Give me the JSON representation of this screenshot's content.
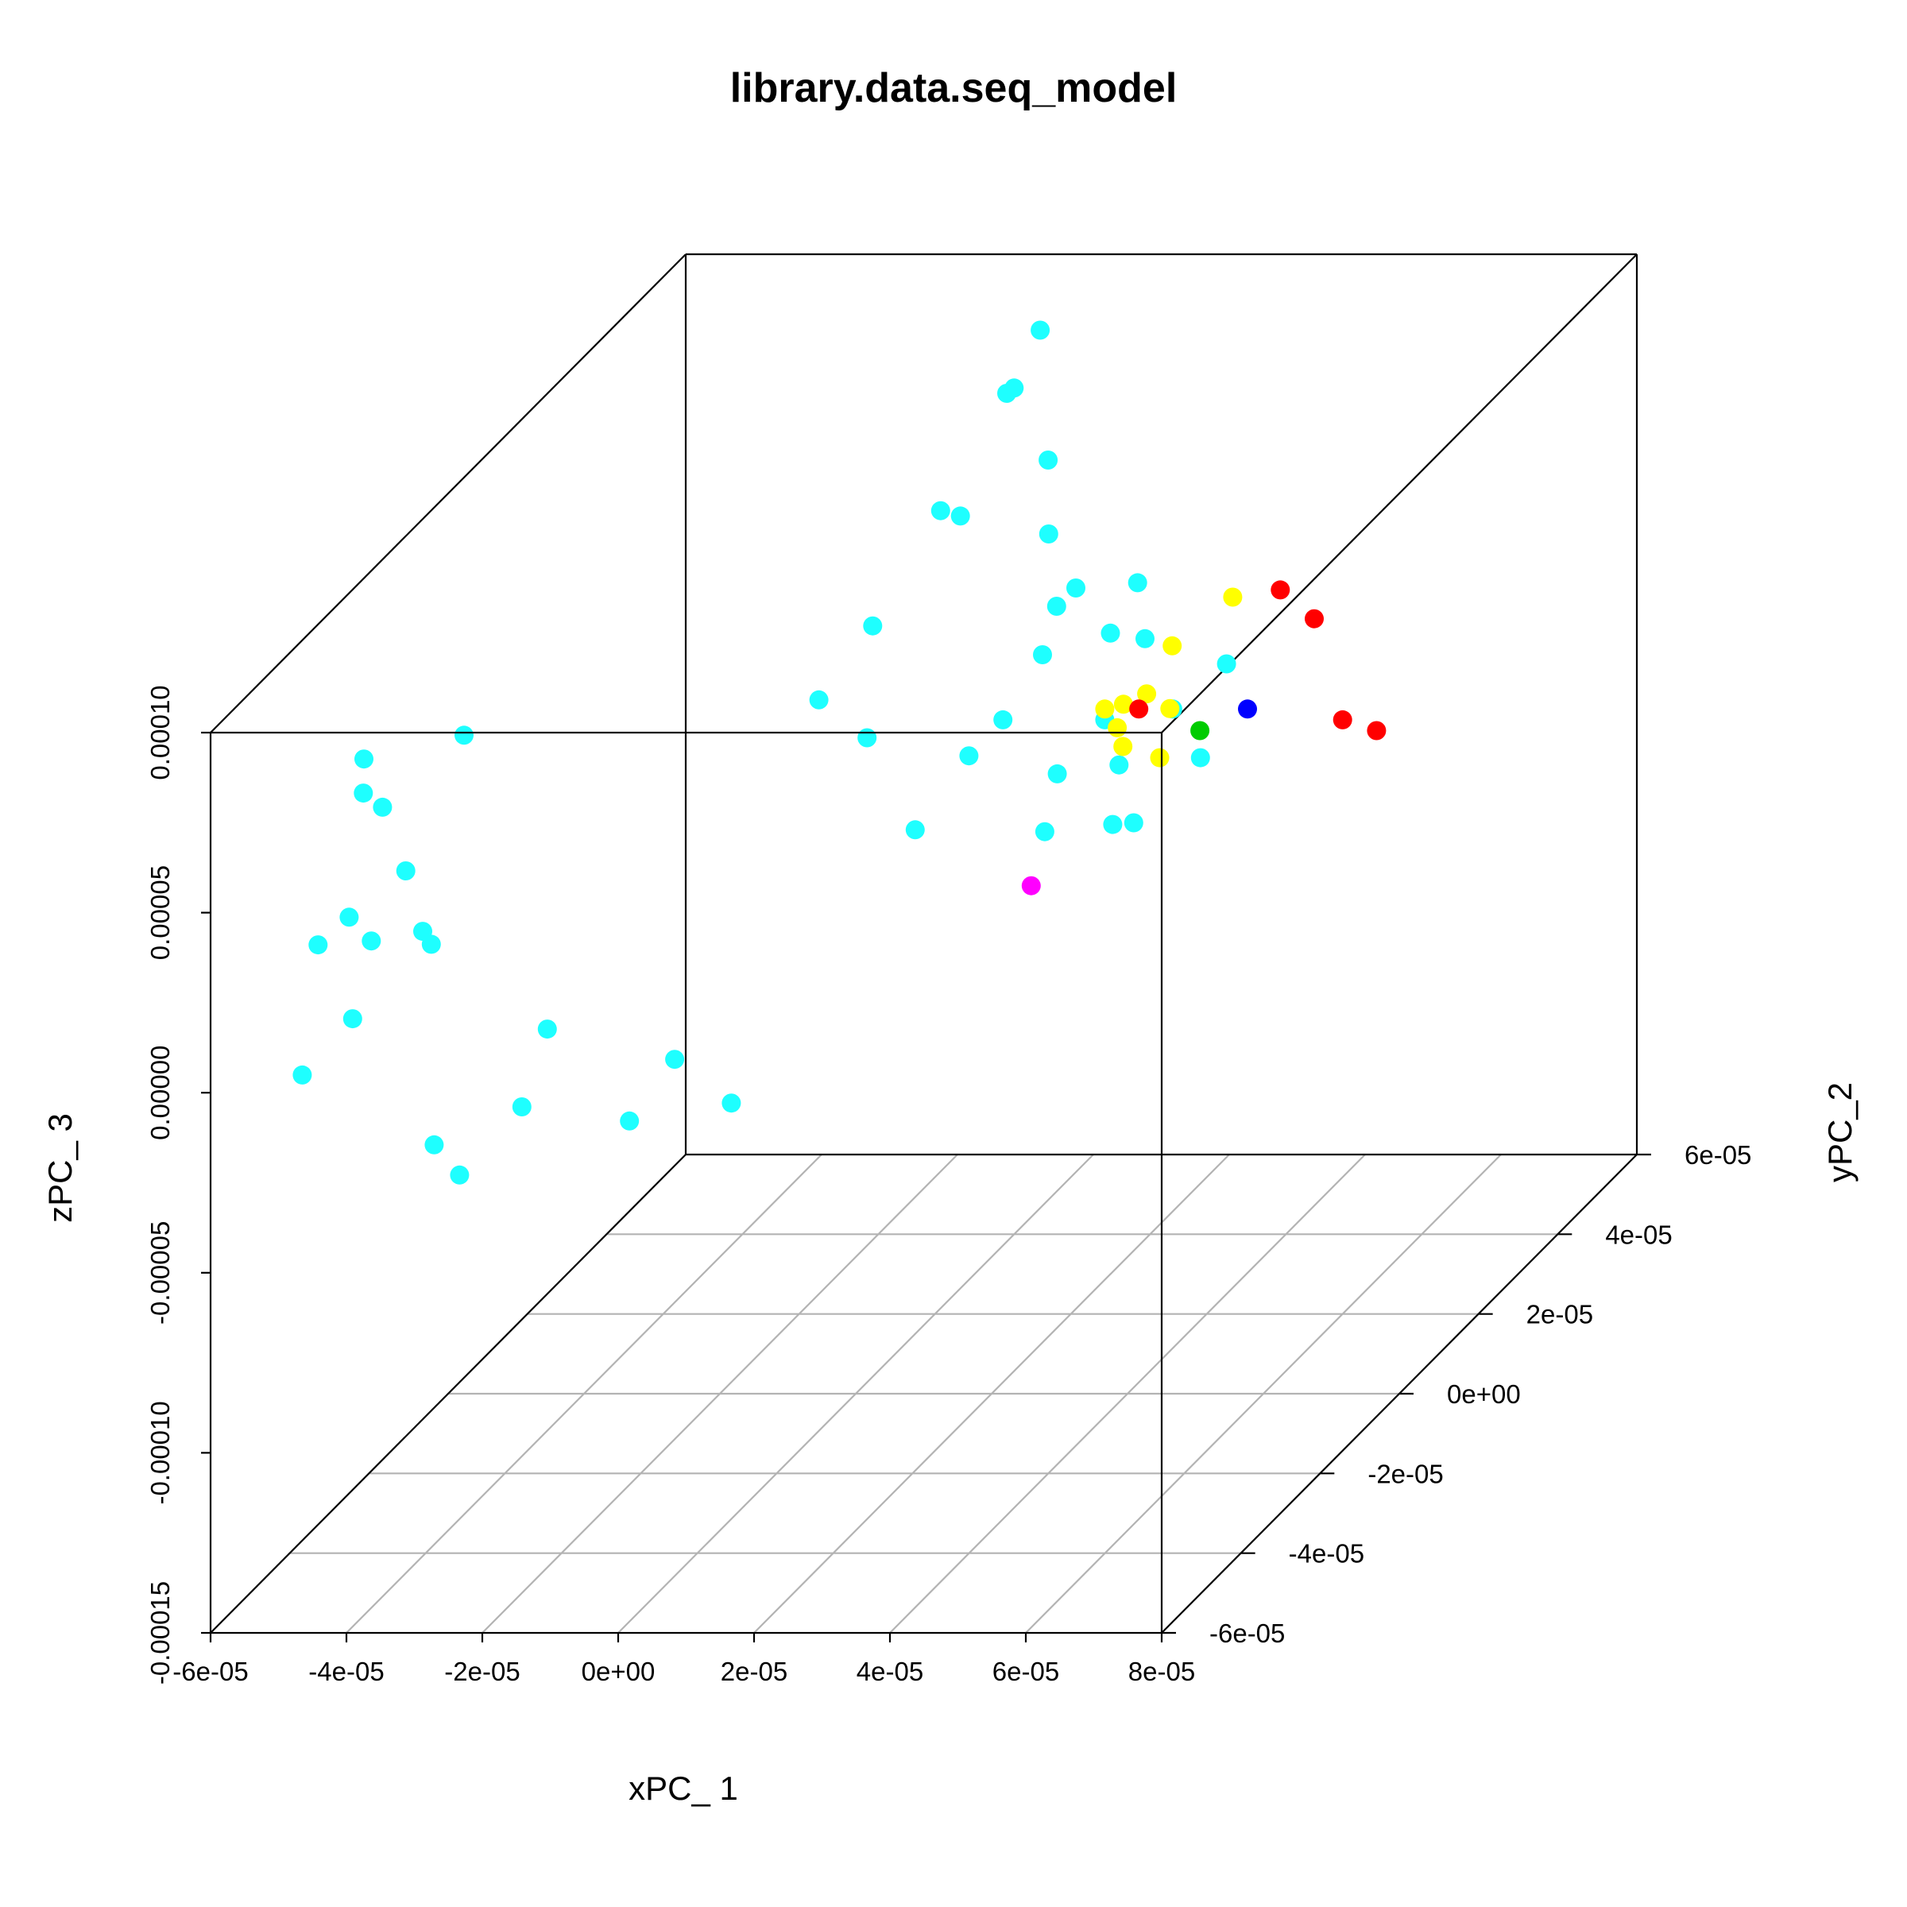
{
  "chart_data": {
    "type": "scatter",
    "title": "library.data.seq_model",
    "xlabel": "xPC_ 1",
    "ylabel": "yPC_2",
    "zlabel": "zPC_ 3",
    "xlim": [
      -6e-05,
      8e-05
    ],
    "ylim": [
      -6e-05,
      6e-05
    ],
    "zlim": [
      -0.00015,
      0.0001
    ],
    "x_ticks": [
      "-6e-05",
      "-4e-05",
      "-2e-05",
      "0e+00",
      "2e-05",
      "4e-05",
      "6e-05",
      "8e-05"
    ],
    "y_ticks": [
      "-6e-05",
      "-4e-05",
      "-2e-05",
      "0e+00",
      "2e-05",
      "4e-05",
      "6e-05"
    ],
    "z_ticks": [
      "-0.00015",
      "-0.00010",
      "-0.00005",
      "0.00000",
      "0.00005",
      "0.00010"
    ],
    "grid": "floor",
    "point_colors": {
      "cyan": "#1effff",
      "yellow": "#ffff00",
      "red": "#ff0000",
      "blue": "#0000ff",
      "magenta": "#ff00ff",
      "green": "#00cc00"
    },
    "series": [
      {
        "color": "cyan",
        "note": "approximate",
        "points": [
          [
            0.0,
            4e-05,
            8.5e-05
          ],
          [
            -5e-06,
            3e-05,
            6.2e-05
          ],
          [
            8e-06,
            3.5e-05,
            5e-05
          ],
          [
            1.2e-05,
            3.5e-05,
            3.5e-05
          ],
          [
            -4e-06,
            4.5e-05,
            7.8e-05
          ],
          [
            1.5e-05,
            2.5e-05,
            4.1e-05
          ],
          [
            2e-05,
            3e-05,
            2.8e-05
          ],
          [
            2.5e-05,
            2e-05,
            1.5e-05
          ],
          [
            3.5e-05,
            2e-05,
            1.8e-05
          ],
          [
            3e-05,
            1.5e-05,
            8e-06
          ],
          [
            4e-05,
            2.5e-05,
            2.5e-05
          ],
          [
            1e-05,
            3e-05,
            2.2e-05
          ],
          [
            5e-06,
            2e-05,
            5e-06
          ],
          [
            -1e-05,
            2e-05,
            1e-05
          ],
          [
            -2e-05,
            2.5e-05,
            1.5e-05
          ],
          [
            1.8e-05,
            2e-05,
            0.0
          ],
          [
            2.2e-05,
            1e-05,
            -5e-06
          ],
          [
            3.2e-05,
            1e-05,
            -3e-06
          ],
          [
            4.2e-05,
            1.5e-05,
            1e-05
          ],
          [
            3.8e-05,
            5e-06,
            3e-06
          ],
          [
            0.0,
            1.5e-05,
            -1e-05
          ],
          [
            -5e-06,
            3.5e-05,
            5.5e-05
          ],
          [
            5e-06,
            4e-05,
            6.5e-05
          ],
          [
            -1.5e-05,
            3e-05,
            3e-05
          ],
          [
            2.8e-05,
            2.5e-05,
            3.2e-05
          ],
          [
            2.4e-05,
            3e-05,
            4.2e-05
          ],
          [
            -2e-06,
            5e-05,
            9e-05
          ],
          [
            1e-05,
            2e-05,
            1.5e-05
          ],
          [
            -5.5e-05,
            -3e-05,
            5e-05
          ],
          [
            -5.8e-05,
            -2e-05,
            3.5e-05
          ],
          [
            -5.2e-05,
            -3.5e-05,
            6.5e-05
          ],
          [
            -4.8e-05,
            -4e-05,
            2e-05
          ],
          [
            -6e-05,
            -2.5e-05,
            1e-05
          ],
          [
            -5.5e-05,
            -1.5e-05,
            -5e-06
          ],
          [
            -4.5e-05,
            -3e-05,
            8e-06
          ],
          [
            -5e-05,
            -5e-05,
            3e-05
          ],
          [
            -4e-05,
            -4.5e-05,
            4.5e-05
          ],
          [
            -4.2e-05,
            -5.5e-05,
            1.5e-05
          ],
          [
            -5.7e-05,
            -4.2e-05,
            -1.5e-05
          ],
          [
            -4.6e-05,
            -2e-05,
            5.5e-05
          ],
          [
            -2.5e-05,
            -3.5e-05,
            -1e-05
          ],
          [
            -2e-05,
            -5e-05,
            -1.5e-05
          ],
          [
            -3e-05,
            -5.5e-05,
            -2e-05
          ],
          [
            -1e-05,
            -4e-05,
            -3e-05
          ],
          [
            5e-06,
            -4e-05,
            -2.5e-05
          ],
          [
            -1.5e-05,
            -2e-05,
            -3.5e-05
          ],
          [
            -3.5e-05,
            -4e-05,
            -4.5e-05
          ]
        ]
      },
      {
        "color": "yellow",
        "note": "approximate",
        "points": [
          [
            2.5e-05,
            2e-05,
            1.8e-05
          ],
          [
            3e-05,
            2.2e-05,
            2e-05
          ],
          [
            2.8e-05,
            1.8e-05,
            1.5e-05
          ],
          [
            3.4e-05,
            2.1e-05,
            1.7e-05
          ],
          [
            3.2e-05,
            2.5e-05,
            3e-05
          ],
          [
            3.6e-05,
            1.5e-05,
            1e-05
          ],
          [
            2.6e-05,
            2.3e-05,
            1.6e-05
          ],
          [
            3.8e-05,
            3e-05,
            3.8e-05
          ],
          [
            3e-05,
            1.6e-05,
            1.2e-05
          ]
        ]
      },
      {
        "color": "red",
        "note": "approximate",
        "points": [
          [
            4.5e-05,
            3e-05,
            4e-05
          ],
          [
            5e-05,
            3e-05,
            3.2e-05
          ],
          [
            6e-05,
            2e-05,
            1.5e-05
          ],
          [
            6.5e-05,
            2e-05,
            1.2e-05
          ],
          [
            3e-05,
            2e-05,
            1.8e-05
          ]
        ]
      },
      {
        "color": "blue",
        "note": "approximate",
        "points": [
          [
            4.6e-05,
            2e-05,
            1.8e-05
          ]
        ]
      },
      {
        "color": "magenta",
        "note": "approximate",
        "points": [
          [
            2e-05,
            1e-05,
            -2e-05
          ]
        ]
      },
      {
        "color": "green",
        "note": "approximate",
        "points": [
          [
            3.9e-05,
            2e-05,
            1.2e-05
          ]
        ]
      }
    ]
  }
}
